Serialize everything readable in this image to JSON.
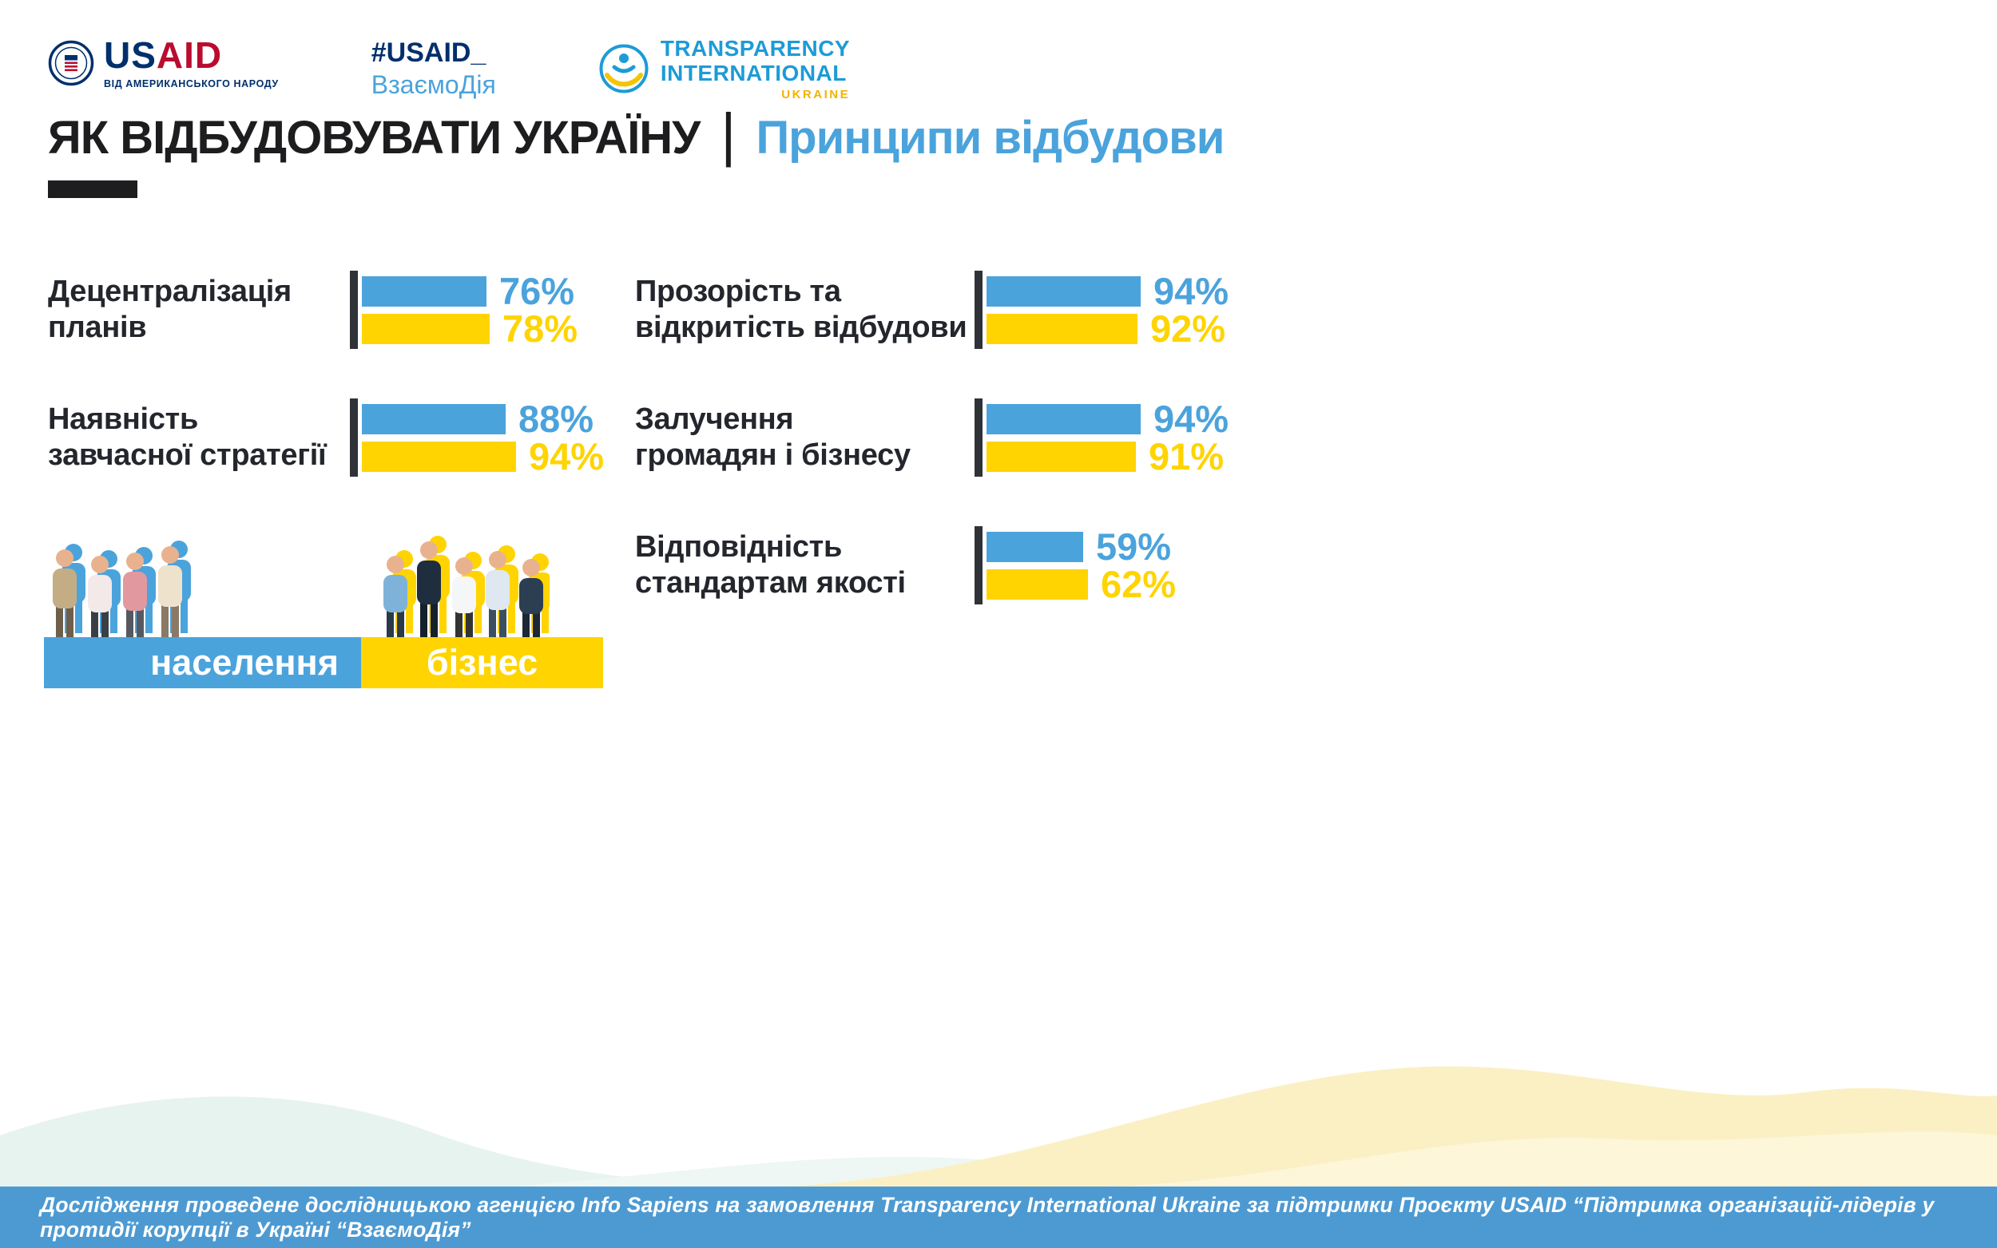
{
  "header": {
    "usaid_logo": {
      "wordmark_us": "US",
      "wordmark_aid": "AID",
      "tagline": "ВІД АМЕРИКАНСЬКОГО НАРОДУ"
    },
    "usaid_hashtag": {
      "line1": "#USAID_",
      "line2": "ВзаємоДія"
    },
    "ti_logo": {
      "line1": "TRANSPARENCY",
      "line2": "INTERNATIONAL",
      "line3": "UKRAINE"
    }
  },
  "title": {
    "black": "ЯК ВІДБУДОВУВАТИ УКРАЇНУ",
    "separator": "|",
    "blue": "Принципи відбудови"
  },
  "legend": {
    "population_label": "населення",
    "business_label": "бізнес"
  },
  "footer": {
    "text": "Дослідження проведене дослідницькою агенцією Info Sapiens на замовлення Transparency International Ukraine за підтримки Проєкту USAID “Підтримка організацій-лідерів у протидії корупції в Україні “ВзаємоДія”"
  },
  "colors": {
    "blue": "#4BA3DC",
    "yellow": "#FFD400",
    "dark_text": "#23262C",
    "axis": "#2F3338",
    "footer_bg": "#4D9AD2",
    "ti_blue": "#1D9BD7",
    "ti_gold": "#F2B200",
    "usaid_navy": "#002F6C",
    "usaid_red": "#BA0C2F"
  },
  "chart_data": {
    "type": "bar",
    "orientation": "horizontal",
    "unit": "%",
    "xlim": [
      0,
      100
    ],
    "series": [
      {
        "name": "населення",
        "color": "#4BA3DC"
      },
      {
        "name": "бізнес",
        "color": "#FFD400"
      }
    ],
    "items": [
      {
        "label_lines": [
          "Децентралізація",
          "планів"
        ],
        "column": "left",
        "population": 76,
        "business": 78
      },
      {
        "label_lines": [
          "Наявність",
          "завчасної стратегії"
        ],
        "column": "left",
        "population": 88,
        "business": 94
      },
      {
        "label_lines": [
          "Прозорість та",
          "відкритість відбудови"
        ],
        "column": "right",
        "population": 94,
        "business": 92
      },
      {
        "label_lines": [
          "Залучення",
          "громадян і бізнесу"
        ],
        "column": "right",
        "population": 94,
        "business": 91
      },
      {
        "label_lines": [
          "Відповідність",
          "стандартам якості"
        ],
        "column": "right",
        "population": 59,
        "business": 62
      }
    ]
  }
}
